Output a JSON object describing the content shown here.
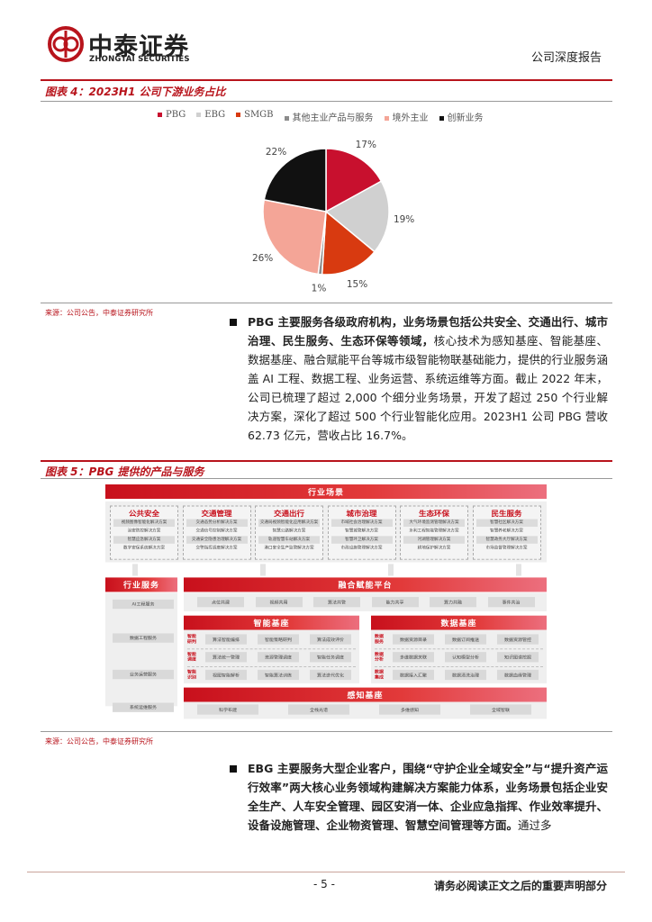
{
  "header": {
    "logo_cn": "中泰证券",
    "logo_en": "ZHONGTAI SECURITIES",
    "report_type": "公司深度报告"
  },
  "figure4": {
    "title": "图表 4：2023H1 公司下游业务占比",
    "source": "来源：公司公告，中泰证券研究所"
  },
  "chart_data": {
    "type": "pie",
    "title": "",
    "legend_position": "top",
    "series": [
      {
        "name": "PBG",
        "value": 17,
        "label": "17%",
        "color": "#c8102e"
      },
      {
        "name": "EBG",
        "value": 19,
        "label": "19%",
        "color": "#d0d0d0"
      },
      {
        "name": "SMGB",
        "value": 15,
        "label": "15%",
        "color": "#d83a10"
      },
      {
        "name": "其他主业产品与服务",
        "value": 1,
        "label": "1%",
        "color": "#8c8c8c"
      },
      {
        "name": "境外主业",
        "value": 26,
        "label": "26%",
        "color": "#f4a597"
      },
      {
        "name": "创新业务",
        "value": 22,
        "label": "22%",
        "color": "#111111"
      }
    ]
  },
  "para1": {
    "bold": "PBG 主要服务各级政府机构，业务场景包括公共安全、交通出行、城市治理、民生服务、生态环保等领域，",
    "text": "核心技术为感知基座、智能基座、数据基座、融合赋能平台等城市级智能物联基础能力，提供的行业服务涵盖 AI 工程、数据工程、业务运营、系统运维等方面。截止 2022 年末，公司已梳理了超过 2,000 个细分业务场景，开发了超过 250 个行业解决方案，深化了超过 500 个行业智能化应用。2023H1 公司 PBG 营收 62.73 亿元，营收占比 16.7%。"
  },
  "figure5": {
    "title": "图表 5：PBG 提供的产品与服务",
    "source": "来源：公司公告，中泰证券研究所",
    "scene_title": "行业场景",
    "columns": [
      {
        "title": "公共安全",
        "items": [
          "视频图像智能化解决方案",
          "治安防控解决方案",
          "智慧应急解决方案",
          "数字安保系统解决方案"
        ]
      },
      {
        "title": "交通管理",
        "items": [
          "交通态势分析解决方案",
          "交通信号控制解决方案",
          "交通安全隐患治理解决方案",
          "交警指挥调度解决方案"
        ]
      },
      {
        "title": "交通出行",
        "items": [
          "交通局视频智能化应用解决方案",
          "智慧公路解决方案",
          "轨道智慧车站解决方案",
          "港口安全生产监管解决方案"
        ]
      },
      {
        "title": "城市治理",
        "items": [
          "市域社会治理解决方案",
          "智慧城管解决方案",
          "智慧环卫解决方案",
          "市政设施管理解决方案"
        ]
      },
      {
        "title": "生态环保",
        "items": [
          "大气环境监测管理解决方案",
          "水利工程智能管理解决方案",
          "河湖管理解决方案",
          "耕地保护解决方案"
        ]
      },
      {
        "title": "民生服务",
        "items": [
          "智慧社区解决方案",
          "智慧养老解决方案",
          "智慧政务大厅解决方案",
          "市场监督管理解决方案"
        ]
      }
    ],
    "industry_service": {
      "title": "行业服务",
      "items": [
        "AI工程服务",
        "数据工程服务",
        "业务运营服务",
        "系统运维服务"
      ]
    },
    "fusion": {
      "title": "融合赋能平台",
      "items": [
        "点位共建",
        "视频共用",
        "算法共管",
        "能力共享",
        "算力共融",
        "事件共治"
      ]
    },
    "intelligent": {
      "title": "智能基座",
      "rows": [
        {
          "label": "智能研判",
          "items": [
            "算法智能编排",
            "智能策略研判",
            "算法成效评价"
          ]
        },
        {
          "label": "智能调度",
          "items": [
            "算法统一管理",
            "资源管理调度",
            "智能任务调度"
          ]
        },
        {
          "label": "智能识别",
          "items": [
            "视图智能解析",
            "智能算法训练",
            "算法迭代优化"
          ]
        }
      ]
    },
    "data": {
      "title": "数据基座",
      "rows": [
        {
          "label": "数据服务",
          "items": [
            "数据资源目录",
            "数据订阅推送",
            "数据资源管控"
          ]
        },
        {
          "label": "数据分析",
          "items": [
            "多维数据关联",
            "认知模型分析",
            "知识图谱挖掘"
          ]
        },
        {
          "label": "数据集成",
          "items": [
            "数据接入汇聚",
            "数据清洗治理",
            "数据血缘管理"
          ]
        }
      ]
    },
    "perception": {
      "title": "感知基座",
      "items": [
        "科学布建",
        "全栈光谱",
        "多维感知",
        "全域智联"
      ]
    }
  },
  "para2": {
    "bold": "EBG 主要服务大型企业客户，围绕“守护企业全域安全”与“提升资产运行效率”两大核心业务领域构建解决方案能力体系，业务场景包括企业安全生产、人车安全管理、园区安消一体、企业应急指挥、作业效率提升、设备设施管理、企业物资管理、智慧空间管理等方面。",
    "text": "通过多"
  },
  "footer": {
    "page": "- 5 -",
    "notice": "请务必阅读正文之后的重要声明部分"
  }
}
